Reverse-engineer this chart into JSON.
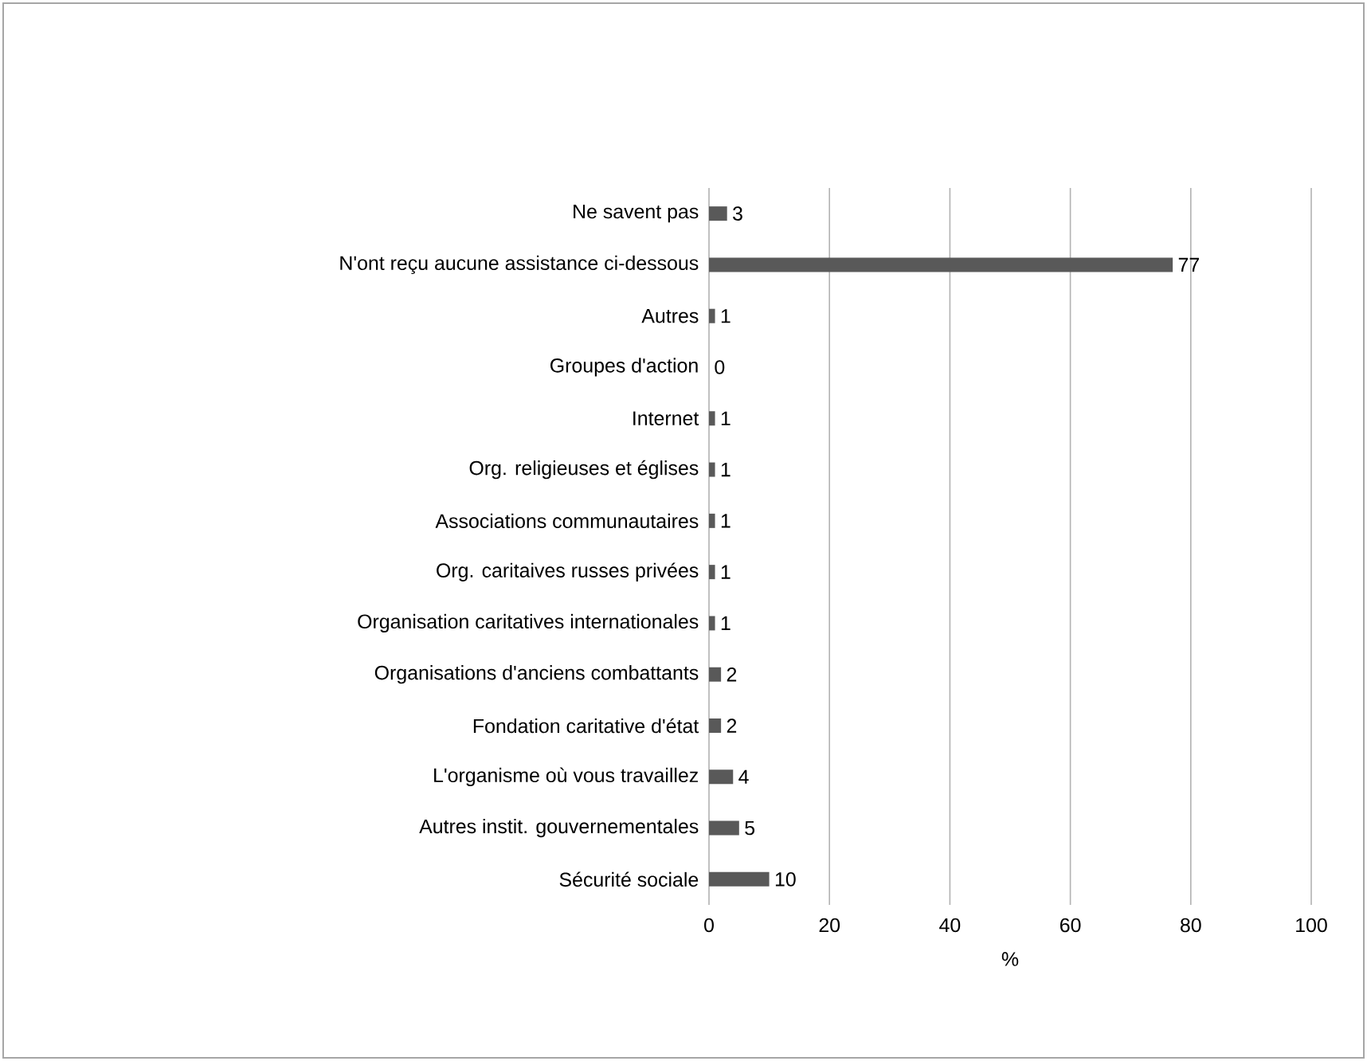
{
  "chart_data": {
    "type": "bar",
    "orientation": "horizontal",
    "xlabel": "%",
    "categories": [
      "Ne savent pas",
      "N'ont reçu aucune assistance ci-dessous",
      "Autres",
      "Groupes d'action",
      "Internet",
      "Org. religieuses et églises",
      "Associations communautaires",
      "Org. caritaives russes privées",
      "Organisation caritatives internationales",
      "Organisations d'anciens combattants",
      "Fondation caritative d'état",
      "L'organisme où vous travaillez",
      "Autres instit. gouvernementales",
      "Sécurité sociale"
    ],
    "values": [
      3,
      77,
      1,
      0,
      1,
      1,
      1,
      1,
      1,
      2,
      2,
      4,
      5,
      10
    ],
    "color": "#595959",
    "xlim": [
      0,
      100
    ],
    "xticks": [
      0,
      20,
      40,
      60,
      80,
      100
    ],
    "grid": "x",
    "data_labels": true
  }
}
